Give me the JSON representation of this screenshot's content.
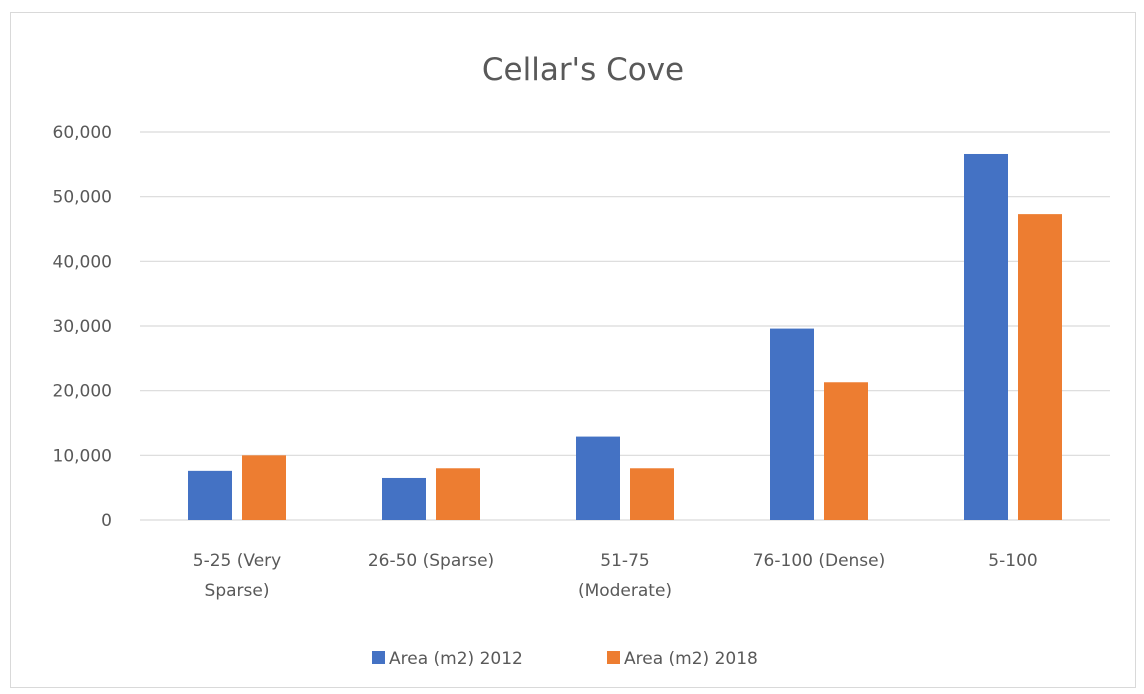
{
  "chart_data": {
    "type": "bar",
    "title": "Cellar's Cove",
    "categories": [
      [
        "5-25 (Very",
        "Sparse)"
      ],
      [
        "26-50 (Sparse)"
      ],
      [
        "51-75",
        "(Moderate)"
      ],
      [
        "76-100 (Dense)"
      ],
      [
        "5-100"
      ]
    ],
    "series": [
      {
        "name": "Area (m2) 2012",
        "color": "#4472C4",
        "values": [
          7600,
          6500,
          12900,
          29600,
          56600
        ]
      },
      {
        "name": "Area (m2) 2018",
        "color": "#ED7D31",
        "values": [
          10000,
          8000,
          8000,
          21300,
          47300
        ]
      }
    ],
    "y_ticks": [
      "0",
      "10,000",
      "20,000",
      "30,000",
      "40,000",
      "50,000",
      "60,000"
    ],
    "ylim": [
      0,
      60000
    ],
    "grid": true,
    "legend_position": "bottom"
  }
}
